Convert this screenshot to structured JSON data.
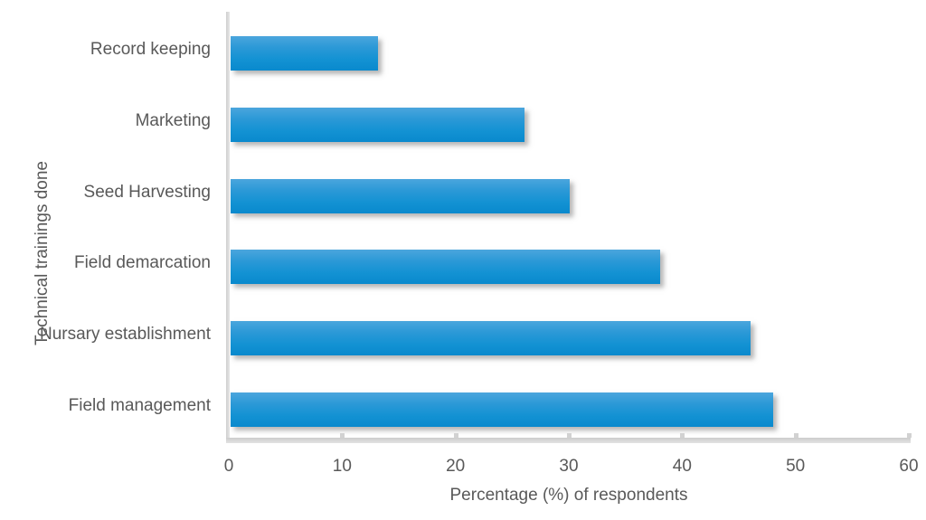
{
  "figure": {
    "background": "#ffffff",
    "text_color": "#595959",
    "axis_color": "#d9d9d9"
  },
  "chart_data": {
    "type": "bar",
    "orientation": "horizontal",
    "title": "",
    "categories": [
      "Record keeping",
      "Marketing",
      "Seed Harvesting",
      "Field demarcation",
      "Nursary establishment",
      "Field management"
    ],
    "values": [
      13,
      26,
      30,
      38,
      46,
      48
    ],
    "xlabel": "Percentage (%) of respondents",
    "ylabel": "Technical trainings done",
    "xlim": [
      0,
      60
    ],
    "x_ticks": [
      0,
      10,
      20,
      30,
      40,
      50,
      60
    ],
    "grid": false,
    "legend": "none",
    "bar_color_top": "#4ba6dd",
    "bar_color_bottom": "#0989cd"
  }
}
